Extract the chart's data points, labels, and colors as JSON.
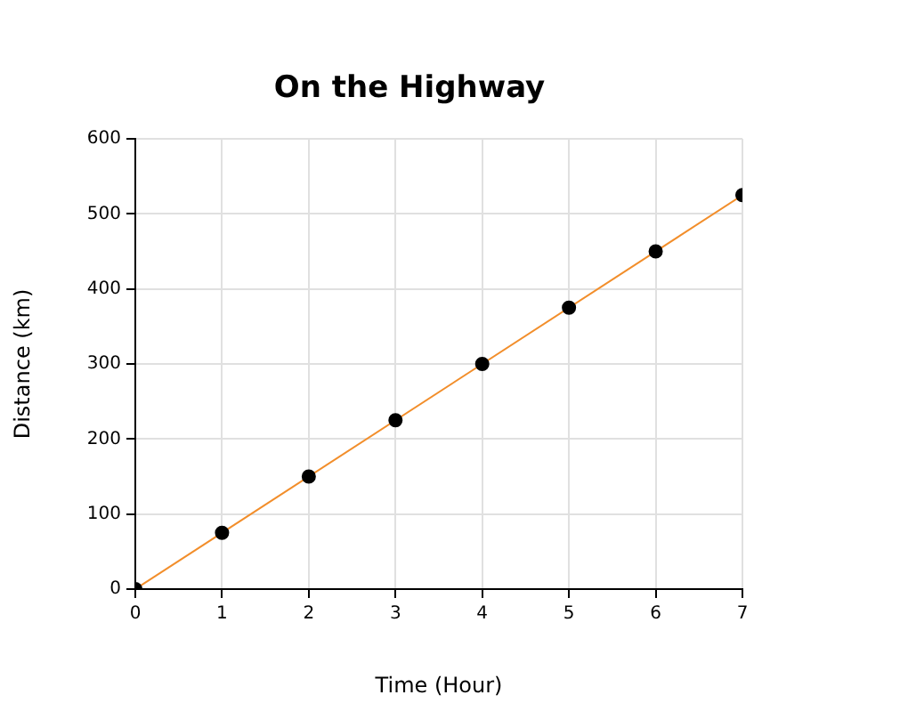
{
  "chart_data": {
    "type": "scatter",
    "title": "On the Highway",
    "xlabel": "Time (Hour)",
    "ylabel": "Distance (km)",
    "x": [
      0,
      1,
      2,
      3,
      4,
      5,
      6,
      7
    ],
    "series": [
      {
        "type": "scatter",
        "color": "#000000",
        "values": [
          0,
          75,
          150,
          225,
          300,
          375,
          450,
          525
        ],
        "marker": "circle"
      },
      {
        "type": "line",
        "color": "#f28e2b",
        "x": [
          0,
          7
        ],
        "values": [
          0,
          525
        ],
        "marker": "none"
      }
    ],
    "xlim": [
      0,
      7
    ],
    "ylim": [
      0,
      600
    ],
    "xticks": [
      0,
      1,
      2,
      3,
      4,
      5,
      6,
      7
    ],
    "yticks": [
      0,
      100,
      200,
      300,
      400,
      500,
      600
    ],
    "grid": true,
    "legend": false
  }
}
